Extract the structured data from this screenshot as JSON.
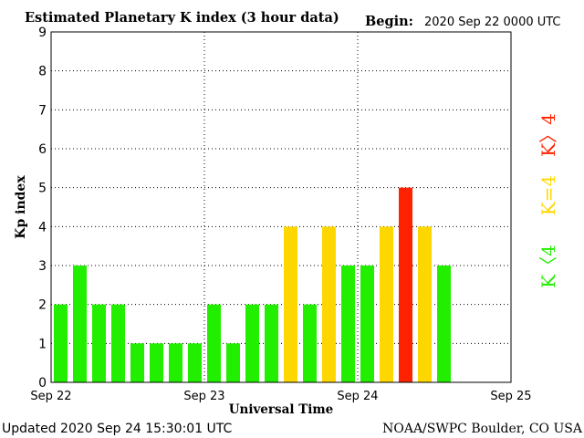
{
  "header": {
    "title": "Estimated Planetary K index (3 hour data)",
    "begin_label": "Begin:",
    "begin_value": "2020 Sep 22 0000 UTC"
  },
  "footer": {
    "updated": "Updated 2020 Sep 24 15:30:01 UTC",
    "source": "NOAA/SWPC Boulder, CO USA"
  },
  "legend": {
    "high": "K〉4",
    "mid": "K=4",
    "low": "K〈4"
  },
  "colors": {
    "low": "#22ee00",
    "mid": "#ffd700",
    "high": "#ff2200"
  },
  "chart_data": {
    "type": "bar",
    "xlabel": "Universal Time",
    "ylabel": "Kp index",
    "ylim": [
      0,
      9
    ],
    "yticks": [
      0,
      1,
      2,
      3,
      4,
      5,
      6,
      7,
      8,
      9
    ],
    "xticks": [
      "Sep 22",
      "Sep 23",
      "Sep 24",
      "Sep 25"
    ],
    "grid": "dotted lines at Kp 1-8 and at each day boundary",
    "interval_hours": 3,
    "series": [
      {
        "values": [
          2,
          3,
          2,
          2,
          1,
          1,
          1,
          1,
          2,
          1,
          2,
          2,
          4,
          2,
          4,
          3,
          3,
          4,
          5,
          4,
          3
        ]
      }
    ]
  }
}
